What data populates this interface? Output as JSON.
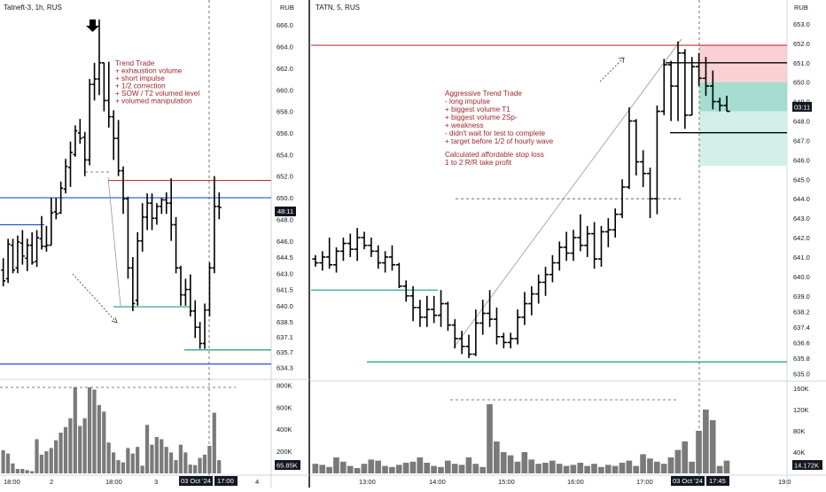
{
  "left_chart": {
    "title": "Tatneft-3, 1h, RUS",
    "currency": "RUB",
    "price_ticks": [
      "666.0",
      "664.0",
      "662.0",
      "660.0",
      "658.0",
      "656.0",
      "654.0",
      "652.0",
      "650.0",
      "648.0",
      "646.0",
      "644.5",
      "643.0",
      "641.5",
      "640.0",
      "638.5",
      "637.1",
      "635.7",
      "634.3"
    ],
    "volume_ticks": [
      "800K",
      "600K",
      "400K",
      "200K"
    ],
    "time_ticks": [
      "18:00",
      "2",
      "18:00",
      "3",
      "4"
    ],
    "current_price_badge": "48:11",
    "current_volume_badge": "65.85K",
    "date_badge": "03 Oct '24",
    "time_badge": "17:00",
    "annotation_lines": [
      "Trend Trade",
      "+ exhaustion volume",
      "+ short impulse",
      "+ 1/2 correction",
      "+ SOW / T2 volumed level",
      "+ volumed manipulation"
    ],
    "colors": {
      "up_down_bar": "#000000",
      "resistance": "#c8303c",
      "support_blue": "#2154d9",
      "support_teal": "#1c9a8a",
      "annotation": "#a0262f",
      "volume": "#7a7a7a"
    }
  },
  "right_chart": {
    "title": "TATN, 5, RUS",
    "currency": "RUB",
    "price_ticks": [
      "653.0",
      "652.0",
      "651.0",
      "650.0",
      "649.0",
      "648.0",
      "647.0",
      "646.0",
      "645.0",
      "644.0",
      "643.0",
      "642.0",
      "641.0",
      "640.0",
      "639.0",
      "638.2",
      "637.4",
      "636.6",
      "635.8",
      "635.0"
    ],
    "volume_ticks": [
      "160K",
      "120K",
      "80K",
      "40K"
    ],
    "time_ticks": [
      "13:00",
      "14:00",
      "15:00",
      "16:00",
      "17:00",
      "19:0"
    ],
    "current_price_badge": "03:11",
    "current_volume_badge": "14.172K",
    "date_badge": "03 Oct '24",
    "time_badge": "17:45",
    "annotation_lines": [
      "Aggressive Trend Trade",
      "- long impulse",
      "+ biggest volume T1",
      "+ biggest volume 2Sp-",
      "+ weakness",
      "- didn't wait for test to complete",
      "+ target before 1/2 of hourly wave",
      "",
      "Calculated affordable stop loss",
      "1 to 2 R/R take profit"
    ],
    "colors": {
      "risk_zone": "#f7c6ca",
      "reward_zone": "#8fd4c4",
      "reward_zone_light": "#cdeee6",
      "resistance": "#c8303c",
      "support_blue": "#2154d9",
      "support_teal": "#1c9a8a"
    }
  },
  "chart_data": [
    {
      "type": "ohlc_bar",
      "title": "Tatneft-3, 1h, RUS",
      "ylabel": "RUB",
      "ylim": [
        633.5,
        667.0
      ],
      "x_ticks": [
        "18:00",
        "2",
        "18:00",
        "3",
        "4"
      ],
      "ohlc": [
        [
          643.3,
          644.4,
          641.8,
          642.3
        ],
        [
          642.5,
          646.2,
          642.1,
          645.7
        ],
        [
          645.6,
          646.2,
          643.0,
          643.3
        ],
        [
          643.5,
          646.5,
          643.0,
          645.9
        ],
        [
          645.8,
          647.0,
          643.8,
          644.6
        ],
        [
          644.4,
          646.2,
          643.2,
          645.6
        ],
        [
          645.6,
          646.8,
          643.8,
          644.0
        ],
        [
          644.1,
          647.0,
          643.6,
          646.3
        ],
        [
          646.2,
          648.3,
          645.2,
          645.5
        ],
        [
          645.5,
          647.4,
          645.0,
          645.6
        ],
        [
          645.6,
          650.0,
          645.6,
          648.6
        ],
        [
          648.7,
          650.0,
          648.0,
          648.5
        ],
        [
          648.6,
          651.5,
          648.5,
          650.9
        ],
        [
          650.8,
          653.6,
          650.4,
          652.9
        ],
        [
          652.8,
          655.2,
          651.0,
          654.2
        ],
        [
          654.0,
          656.7,
          653.8,
          656.2
        ],
        [
          656.0,
          657.3,
          655.0,
          655.5
        ],
        [
          655.6,
          656.1,
          652.0,
          653.5
        ],
        [
          653.5,
          661.0,
          653.0,
          660.5
        ],
        [
          660.5,
          662.5,
          659.0,
          661.0
        ],
        [
          661.0,
          666.5,
          659.5,
          662.5
        ],
        [
          662.5,
          662.5,
          658.0,
          659.0
        ],
        [
          659.0,
          662.6,
          656.5,
          657.5
        ],
        [
          657.5,
          658.1,
          653.5,
          655.5
        ],
        [
          655.5,
          657.2,
          652.0,
          652.5
        ],
        [
          652.5,
          652.9,
          648.5,
          649.9
        ],
        [
          649.9,
          650.1,
          642.5,
          643.5
        ],
        [
          643.5,
          644.5,
          639.5,
          640.2
        ],
        [
          640.5,
          646.8,
          640.0,
          646.0
        ],
        [
          646.0,
          649.5,
          645.0,
          648.2
        ],
        [
          648.2,
          650.4,
          647.0,
          649.5
        ],
        [
          649.5,
          650.4,
          647.0,
          648.1
        ],
        [
          648.1,
          649.5,
          647.5,
          649.2
        ],
        [
          649.2,
          650.0,
          648.5,
          649.8
        ],
        [
          649.8,
          650.5,
          648.5,
          649.5
        ],
        [
          649.5,
          651.8,
          646.0,
          647.5
        ],
        [
          647.5,
          648.2,
          643.0,
          643.5
        ],
        [
          643.5,
          643.7,
          640.0,
          641.0
        ],
        [
          641.0,
          642.5,
          640.0,
          641.5
        ],
        [
          641.5,
          642.9,
          639.0,
          639.5
        ],
        [
          639.5,
          640.5,
          637.0,
          638.0
        ],
        [
          638.0,
          638.5,
          636.0,
          636.5
        ],
        [
          636.5,
          640.2,
          636.0,
          639.6
        ],
        [
          639.6,
          644.0,
          639.0,
          643.5
        ],
        [
          643.5,
          652.0,
          643.0,
          649.2
        ],
        [
          649.2,
          650.5,
          648.0,
          649.1
        ]
      ],
      "volume": [
        210,
        180,
        90,
        40,
        40,
        30,
        20,
        310,
        170,
        200,
        230,
        300,
        370,
        420,
        500,
        780,
        430,
        500,
        780,
        760,
        620,
        560,
        280,
        190,
        120,
        100,
        230,
        180,
        240,
        70,
        440,
        260,
        330,
        310,
        240,
        190,
        120,
        260,
        190,
        80,
        75,
        140,
        170,
        250,
        550,
        120
      ],
      "levels": {
        "resistance": 651.6,
        "support_upper_blue": 650.0,
        "support_left_blue": 647.5,
        "support_teal_1": 639.9,
        "support_teal_2": 635.9,
        "support_lower_blue": 634.6
      }
    },
    {
      "type": "ohlc_bar",
      "title": "TATN, 5, RUS",
      "ylabel": "RUB",
      "ylim": [
        634.7,
        653.5
      ],
      "x_ticks": [
        "13:00",
        "14:00",
        "15:00",
        "16:00",
        "17:00",
        "19:0"
      ],
      "ohlc": [
        [
          640.9,
          641.1,
          640.5,
          640.7
        ],
        [
          640.7,
          641.3,
          640.3,
          641.0
        ],
        [
          641.0,
          642.0,
          640.4,
          640.6
        ],
        [
          640.6,
          641.5,
          640.2,
          641.3
        ],
        [
          641.3,
          642.0,
          640.8,
          641.7
        ],
        [
          641.7,
          642.2,
          641.0,
          641.4
        ],
        [
          641.4,
          642.5,
          640.8,
          642.0
        ],
        [
          642.0,
          642.3,
          641.4,
          641.6
        ],
        [
          641.6,
          642.0,
          641.0,
          641.3
        ],
        [
          641.3,
          641.6,
          640.4,
          640.7
        ],
        [
          640.7,
          641.3,
          640.2,
          641.0
        ],
        [
          641.0,
          641.6,
          640.3,
          640.6
        ],
        [
          640.6,
          640.7,
          639.4,
          639.5
        ],
        [
          639.5,
          639.8,
          638.7,
          639.0
        ],
        [
          639.0,
          639.5,
          637.7,
          638.4
        ],
        [
          638.4,
          638.8,
          637.4,
          637.9
        ],
        [
          637.9,
          639.0,
          637.4,
          638.3
        ],
        [
          638.3,
          639.0,
          637.6,
          638.0
        ],
        [
          638.0,
          639.3,
          637.4,
          638.6
        ],
        [
          638.6,
          638.7,
          637.2,
          637.5
        ],
        [
          637.5,
          637.8,
          636.3,
          636.8
        ],
        [
          636.8,
          637.2,
          636.0,
          636.4
        ],
        [
          636.4,
          637.0,
          635.8,
          636.0
        ],
        [
          636.0,
          638.3,
          635.9,
          637.6
        ],
        [
          637.6,
          638.8,
          637.0,
          638.1
        ],
        [
          638.1,
          639.3,
          637.4,
          637.8
        ],
        [
          637.8,
          638.4,
          636.5,
          636.9
        ],
        [
          636.9,
          637.1,
          636.3,
          636.6
        ],
        [
          636.6,
          637.1,
          636.3,
          636.8
        ],
        [
          636.8,
          638.3,
          636.5,
          637.9
        ],
        [
          637.9,
          639.2,
          637.5,
          638.6
        ],
        [
          638.6,
          639.5,
          638.0,
          639.1
        ],
        [
          639.1,
          640.1,
          638.6,
          639.7
        ],
        [
          639.7,
          640.5,
          639.0,
          640.1
        ],
        [
          640.1,
          641.1,
          639.7,
          640.7
        ],
        [
          640.7,
          641.8,
          640.3,
          641.5
        ],
        [
          641.5,
          642.3,
          640.8,
          641.2
        ],
        [
          641.2,
          642.4,
          640.8,
          642.0
        ],
        [
          642.0,
          643.2,
          641.3,
          641.6
        ],
        [
          641.6,
          642.6,
          641.0,
          642.2
        ],
        [
          642.2,
          642.8,
          640.4,
          640.9
        ],
        [
          640.9,
          642.6,
          640.5,
          642.3
        ],
        [
          642.3,
          643.0,
          641.5,
          642.4
        ],
        [
          642.4,
          643.5,
          642.0,
          643.2
        ],
        [
          643.2,
          645.0,
          643.0,
          644.6
        ],
        [
          644.6,
          648.7,
          644.5,
          648.0
        ],
        [
          648.0,
          648.1,
          645.2,
          645.9
        ],
        [
          645.9,
          646.5,
          644.6,
          645.3
        ],
        [
          645.3,
          645.6,
          643.0,
          644.0
        ],
        [
          644.0,
          648.8,
          643.2,
          648.5
        ],
        [
          648.5,
          651.2,
          648.3,
          650.9
        ],
        [
          650.9,
          651.1,
          648.0,
          649.8
        ],
        [
          649.8,
          652.1,
          648.0,
          651.5
        ],
        [
          651.5,
          651.7,
          647.6,
          648.3
        ],
        [
          648.3,
          651.3,
          648.3,
          650.8
        ],
        [
          650.8,
          651.5,
          649.8,
          650.2
        ],
        [
          650.2,
          651.3,
          649.3,
          649.8
        ],
        [
          649.8,
          650.6,
          648.6,
          649.0
        ],
        [
          649.0,
          649.2,
          648.5,
          648.8
        ],
        [
          648.8,
          649.3,
          648.5,
          648.5
        ]
      ],
      "volume": [
        18,
        16,
        12,
        30,
        22,
        14,
        10,
        18,
        26,
        24,
        14,
        12,
        16,
        20,
        22,
        30,
        20,
        14,
        12,
        24,
        18,
        16,
        30,
        18,
        12,
        130,
        60,
        40,
        34,
        22,
        40,
        26,
        18,
        20,
        24,
        18,
        14,
        16,
        20,
        14,
        18,
        12,
        16,
        14,
        20,
        24,
        14,
        36,
        28,
        22,
        18,
        30,
        44,
        60,
        22,
        80,
        120,
        100,
        14,
        24
      ],
      "levels": {
        "resistance": 651.9,
        "teal_left": 639.3,
        "teal_bottom": 635.6,
        "entry": 650.0,
        "stop": 651.0,
        "target": 647.4
      }
    }
  ]
}
